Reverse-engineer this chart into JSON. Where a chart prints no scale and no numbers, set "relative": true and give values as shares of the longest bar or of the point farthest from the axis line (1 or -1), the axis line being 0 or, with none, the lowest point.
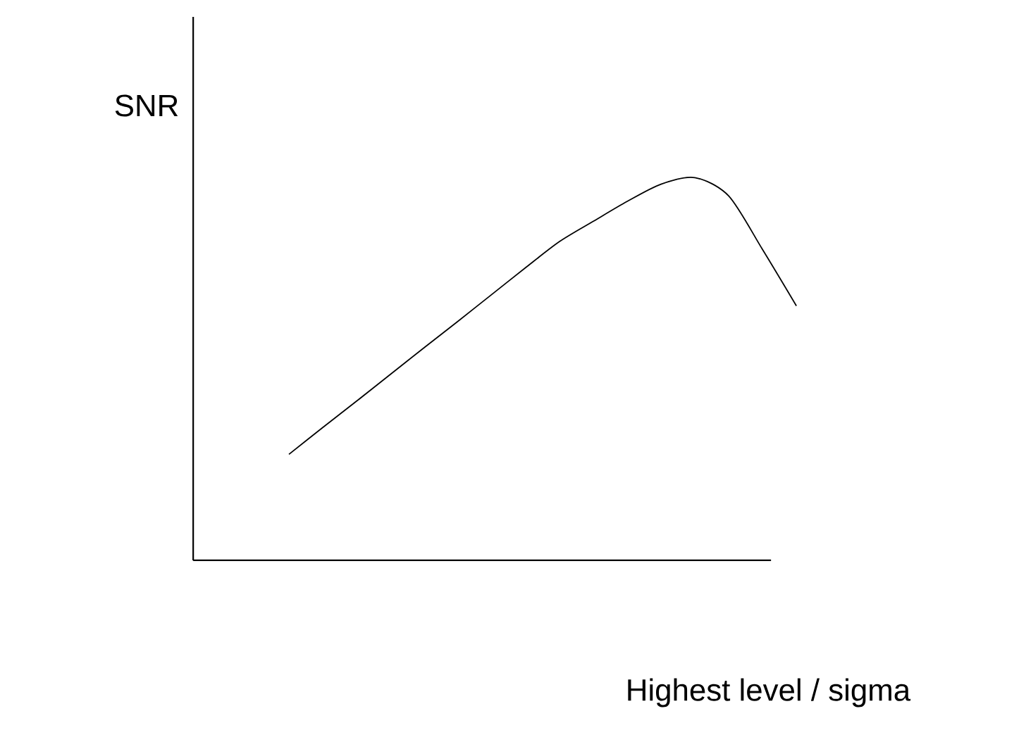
{
  "chart_data": {
    "type": "line",
    "relative": true,
    "xlabel": "Highest level / sigma",
    "ylabel": "SNR",
    "color": "#000000",
    "categories": [
      null,
      null,
      null,
      null,
      null,
      null,
      null,
      null,
      null,
      null,
      null,
      null,
      null,
      null,
      null,
      null
    ],
    "values": [
      0.277,
      0.347,
      0.416,
      0.486,
      0.556,
      0.625,
      0.695,
      0.765,
      0.833,
      0.886,
      0.938,
      0.983,
      1.0,
      0.952,
      0.812,
      0.665
    ]
  }
}
